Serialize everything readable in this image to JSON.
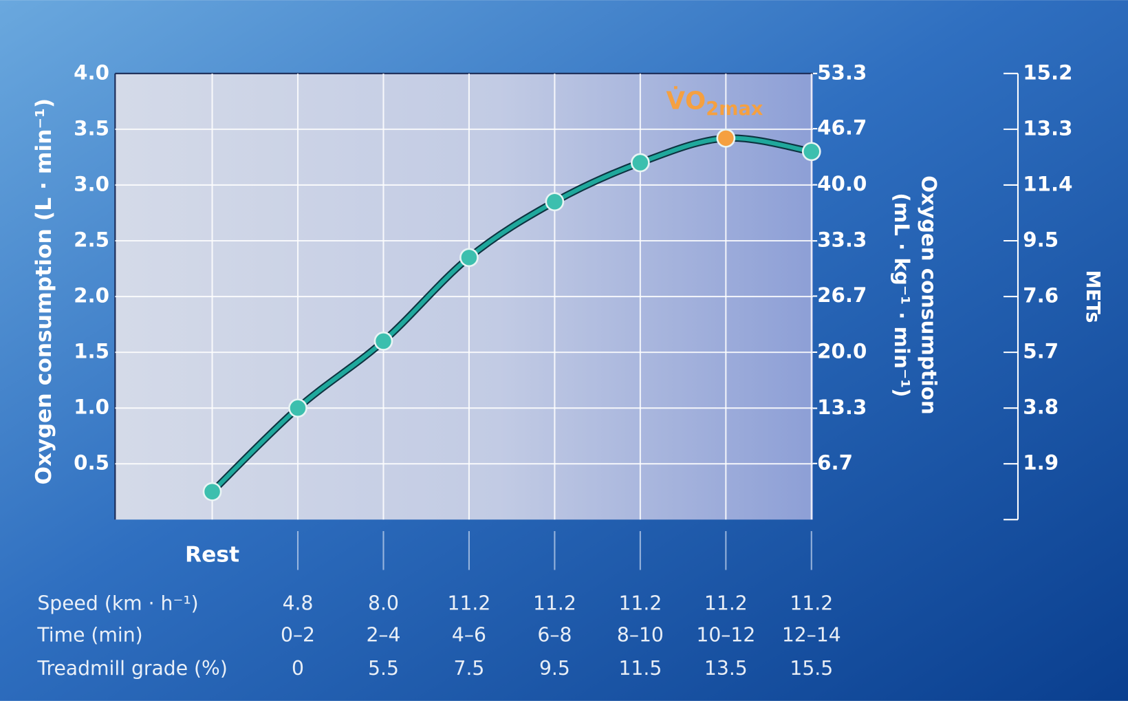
{
  "chart_data": {
    "type": "line",
    "ylabel": "Oxygen consumption (L · min⁻¹)",
    "y2label": [
      "Oxygen consumption",
      "(mL · kg⁻¹ · min⁻¹)"
    ],
    "y3label": "METs",
    "annotation": {
      "text": "V̇O",
      "subscript": "2max"
    },
    "categories": [
      "Rest",
      null,
      null,
      null,
      null,
      null,
      null,
      null
    ],
    "values": [
      0.25,
      1.0,
      1.6,
      2.35,
      2.85,
      3.2,
      3.42,
      3.3
    ],
    "color": "#1fa89c",
    "highlight_color": "#f5a040",
    "ylim": [
      0,
      4.0
    ],
    "yticks": [
      0.5,
      {
        "value": 1.0,
        "label": "1.0"
      },
      1.5,
      {
        "value": 2.0,
        "label": "2.0"
      },
      2.5,
      {
        "value": 3.0,
        "label": "3.0"
      },
      3.5,
      {
        "value": 4.0,
        "label": "4.0"
      }
    ],
    "y2lim": [
      0,
      53.3
    ],
    "y2ticks": [
      6.7,
      13.3,
      {
        "value": 20.0,
        "label": "20.0"
      },
      26.7,
      33.3,
      {
        "value": 40.0,
        "label": "40.0"
      },
      46.7,
      53.3
    ],
    "y3lim": [
      0,
      15.2
    ],
    "y3ticks": [
      1.9,
      3.8,
      5.7,
      7.6,
      9.5,
      11.4,
      13.3,
      15.2
    ],
    "grid": true,
    "table": {
      "rows": [
        {
          "label": "Speed (km · h⁻¹)",
          "values": [
            "4.8",
            "8.0",
            "11.2",
            "11.2",
            "11.2",
            "11.2",
            "11.2"
          ]
        },
        {
          "label": "Time (min)",
          "values": [
            "0–2",
            "2–4",
            "4–6",
            "6–8",
            "8–10",
            "10–12",
            "12–14"
          ]
        },
        {
          "label": "Treadmill grade (%)",
          "values": [
            "0",
            "5.5",
            "7.5",
            "9.5",
            "11.5",
            "13.5",
            "15.5"
          ]
        }
      ]
    }
  }
}
